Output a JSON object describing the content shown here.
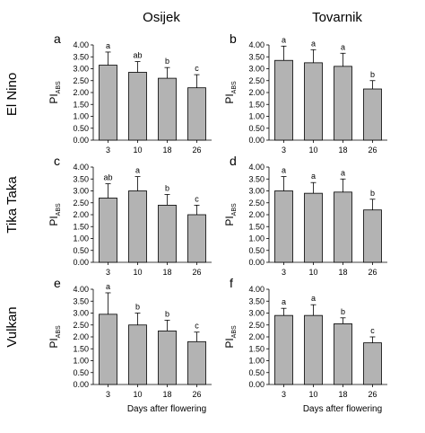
{
  "figure": {
    "columns": [
      "Osijek",
      "Tovarnik"
    ],
    "rows": [
      "El Nino",
      "Tika Taka",
      "Vulkan"
    ],
    "xlabel": "Days after flowering",
    "ylabel_main": "PI",
    "ylabel_sub": "ABS"
  },
  "chart_data": [
    {
      "type": "bar",
      "letter": "a",
      "location": "Osijek",
      "cultivar": "El Nino",
      "categories": [
        "3",
        "10",
        "18",
        "26"
      ],
      "values": [
        3.15,
        2.85,
        2.6,
        2.2
      ],
      "errors": [
        0.55,
        0.45,
        0.45,
        0.55
      ],
      "letters": [
        "a",
        "ab",
        "b",
        "c"
      ],
      "ylim": [
        0,
        4
      ],
      "yticks": [
        "0.00",
        "0.50",
        "1.00",
        "1.50",
        "2.00",
        "2.50",
        "3.00",
        "3.50",
        "4.00"
      ]
    },
    {
      "type": "bar",
      "letter": "b",
      "location": "Tovarnik",
      "cultivar": "El Nino",
      "categories": [
        "3",
        "10",
        "18",
        "26"
      ],
      "values": [
        3.35,
        3.25,
        3.1,
        2.15
      ],
      "errors": [
        0.6,
        0.55,
        0.55,
        0.35
      ],
      "letters": [
        "a",
        "a",
        "a",
        "b"
      ],
      "ylim": [
        0,
        4
      ],
      "yticks": [
        "0.00",
        "0.50",
        "1.00",
        "1.50",
        "2.00",
        "2.50",
        "3.00",
        "3.50",
        "4.00"
      ]
    },
    {
      "type": "bar",
      "letter": "c",
      "location": "Osijek",
      "cultivar": "Tika Taka",
      "categories": [
        "3",
        "10",
        "18",
        "26"
      ],
      "values": [
        2.7,
        3.0,
        2.4,
        2.0
      ],
      "errors": [
        0.6,
        0.6,
        0.45,
        0.4
      ],
      "letters": [
        "ab",
        "a",
        "b",
        "c"
      ],
      "ylim": [
        0,
        4
      ],
      "yticks": [
        "0.00",
        "0.50",
        "1.00",
        "1.50",
        "2.00",
        "2.50",
        "3.00",
        "3.50",
        "4.00"
      ]
    },
    {
      "type": "bar",
      "letter": "d",
      "location": "Tovarnik",
      "cultivar": "Tika Taka",
      "categories": [
        "3",
        "10",
        "18",
        "26"
      ],
      "values": [
        3.0,
        2.9,
        2.95,
        2.2
      ],
      "errors": [
        0.6,
        0.45,
        0.55,
        0.45
      ],
      "letters": [
        "a",
        "a",
        "a",
        "b"
      ],
      "ylim": [
        0,
        4
      ],
      "yticks": [
        "0.00",
        "0.50",
        "1.00",
        "1.50",
        "2.00",
        "2.50",
        "3.00",
        "3.50",
        "4.00"
      ]
    },
    {
      "type": "bar",
      "letter": "e",
      "location": "Osijek",
      "cultivar": "Vulkan",
      "categories": [
        "3",
        "10",
        "18",
        "26"
      ],
      "values": [
        2.95,
        2.5,
        2.25,
        1.8
      ],
      "errors": [
        0.9,
        0.5,
        0.45,
        0.4
      ],
      "letters": [
        "a",
        "b",
        "b",
        "c"
      ],
      "ylim": [
        0,
        4
      ],
      "yticks": [
        "0.00",
        "0.50",
        "1.00",
        "1.50",
        "2.00",
        "2.50",
        "3.00",
        "3.50",
        "4.00"
      ]
    },
    {
      "type": "bar",
      "letter": "f",
      "location": "Tovarnik",
      "cultivar": "Vulkan",
      "categories": [
        "3",
        "10",
        "18",
        "26"
      ],
      "values": [
        2.9,
        2.9,
        2.55,
        1.75
      ],
      "errors": [
        0.3,
        0.45,
        0.25,
        0.25
      ],
      "letters": [
        "a",
        "a",
        "b",
        "c"
      ],
      "ylim": [
        0,
        4
      ],
      "yticks": [
        "0.00",
        "0.50",
        "1.00",
        "1.50",
        "2.00",
        "2.50",
        "3.00",
        "3.50",
        "4.00"
      ]
    }
  ]
}
